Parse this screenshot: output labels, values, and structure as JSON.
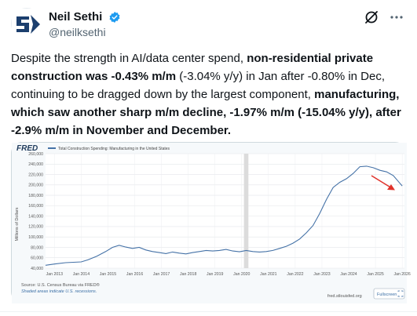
{
  "author": {
    "display_name": "Neil Sethi",
    "handle": "@neilksethi"
  },
  "tweet": {
    "s1": "Despite the strength in AI/data center spend, ",
    "s2": "non-residential private construction was -0.43% m/m",
    "s3": " (-3.04% y/y) in Jan after -0.80% in Dec, continuing to be dragged down by the largest component, ",
    "s4": "manufacturing, which saw another sharp m/m decline, -1.97% m/m (-15.04% y/y), after -2.9% m/m in November and December."
  },
  "colors": {
    "verified": "#1d9bf0",
    "series": "#4572a7",
    "arrow": "#e0322a",
    "recession": "#dcdcdc"
  },
  "icons": [
    "verified-badge-icon",
    "grok-icon",
    "more-options-icon",
    "fullscreen-icon"
  ],
  "chart": {
    "logo": "FRED",
    "legend_label": "Total Construction Spending: Manufacturing in the United States",
    "ylabel": "Millions of Dollars",
    "source": "Source: U.S. Census Bureau via FRED®",
    "recession_note": "Shaded areas indicate U.S. recessions.",
    "url": "fred.stlouisfed.org",
    "fullscreen_label": "Fullscreen"
  },
  "chart_data": {
    "type": "line",
    "title": "Total Construction Spending: Manufacturing in the United States",
    "ylabel": "Millions of Dollars",
    "ylim": [
      40000,
      260000
    ],
    "y_ticks": [
      "40,000",
      "60,000",
      "80,000",
      "100,000",
      "120,000",
      "140,000",
      "160,000",
      "180,000",
      "200,000",
      "220,000",
      "240,000",
      "260,000"
    ],
    "x_ticks": [
      "Jan 2013",
      "Jan 2014",
      "Jan 2015",
      "Jan 2016",
      "Jan 2017",
      "Jan 2018",
      "Jan 2019",
      "Jan 2020",
      "Jan 2021",
      "Jan 2022",
      "Jan 2023",
      "Jan 2024",
      "Jan 2025",
      "Jan 2026"
    ],
    "recession": [
      "2020-02",
      "2020-04"
    ],
    "series": [
      {
        "points": [
          [
            "2012-09",
            45500
          ],
          [
            "2013-01",
            48000
          ],
          [
            "2013-06",
            50500
          ],
          [
            "2014-01",
            52000
          ],
          [
            "2014-04",
            56000
          ],
          [
            "2014-08",
            63000
          ],
          [
            "2014-12",
            72000
          ],
          [
            "2015-03",
            80000
          ],
          [
            "2015-06",
            84000
          ],
          [
            "2015-09",
            80500
          ],
          [
            "2015-12",
            78000
          ],
          [
            "2016-03",
            80000
          ],
          [
            "2016-06",
            75000
          ],
          [
            "2016-09",
            72000
          ],
          [
            "2016-12",
            70000
          ],
          [
            "2017-03",
            68000
          ],
          [
            "2017-06",
            71000
          ],
          [
            "2017-09",
            69000
          ],
          [
            "2017-12",
            67500
          ],
          [
            "2018-03",
            70000
          ],
          [
            "2018-06",
            72000
          ],
          [
            "2018-09",
            74000
          ],
          [
            "2018-12",
            73000
          ],
          [
            "2019-03",
            74000
          ],
          [
            "2019-06",
            76000
          ],
          [
            "2019-09",
            73000
          ],
          [
            "2019-12",
            71500
          ],
          [
            "2020-03",
            74000
          ],
          [
            "2020-06",
            72000
          ],
          [
            "2020-09",
            71000
          ],
          [
            "2020-12",
            72000
          ],
          [
            "2021-03",
            74000
          ],
          [
            "2021-06",
            78000
          ],
          [
            "2021-09",
            82000
          ],
          [
            "2021-12",
            88000
          ],
          [
            "2022-03",
            96000
          ],
          [
            "2022-06",
            108000
          ],
          [
            "2022-09",
            122000
          ],
          [
            "2022-12",
            145000
          ],
          [
            "2023-03",
            172000
          ],
          [
            "2023-06",
            195000
          ],
          [
            "2023-09",
            205000
          ],
          [
            "2023-12",
            212000
          ],
          [
            "2024-03",
            222000
          ],
          [
            "2024-06",
            235000
          ],
          [
            "2024-09",
            236000
          ],
          [
            "2024-12",
            233000
          ],
          [
            "2025-03",
            228000
          ],
          [
            "2025-06",
            225000
          ],
          [
            "2025-09",
            218000
          ],
          [
            "2025-12",
            203000
          ],
          [
            "2026-01",
            198000
          ]
        ]
      }
    ],
    "grid": true,
    "annotation": "red arrow pointing down-right at recent decline"
  }
}
